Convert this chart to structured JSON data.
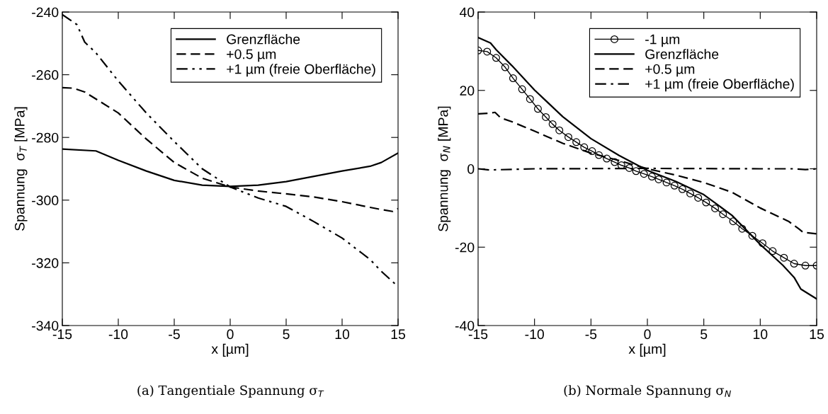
{
  "chart_data": [
    {
      "type": "line",
      "xlabel": "x [µm]",
      "ylabel": "Spannung  σ$_{T}$ [MPa]",
      "annotations": [
        "(a) Tangentiale Spannung σ$_{T}$"
      ],
      "xlim": [
        -15,
        15
      ],
      "xticks": [
        -15,
        -10,
        -5,
        0,
        5,
        10,
        15
      ],
      "ylim": [
        -340,
        -240
      ],
      "yticks": [
        -340,
        -320,
        -300,
        -280,
        -260,
        -240
      ],
      "grid": false,
      "legend": "top right",
      "series": [
        {
          "name": "Grenzfläche",
          "color": "#000000",
          "line_style": "solid",
          "x": [
            -15,
            -12,
            -10,
            -7.5,
            -5,
            -2.5,
            0,
            2.5,
            5,
            7.5,
            10,
            12.5,
            13.5,
            15
          ],
          "values": [
            -283.7,
            -284.3,
            -287.3,
            -290.7,
            -293.7,
            -295.2,
            -295.6,
            -295.2,
            -294.1,
            -292.4,
            -290.7,
            -289.2,
            -288,
            -285
          ]
        },
        {
          "name": "+0.5 µm",
          "color": "#000000",
          "line_style": "dashed",
          "x": [
            -15,
            -14,
            -13,
            -10,
            -7.5,
            -5,
            -2.5,
            0,
            2.5,
            5,
            7.5,
            10,
            12.5,
            13.5,
            14.5,
            15
          ],
          "values": [
            -264.1,
            -264.3,
            -265.5,
            -272.2,
            -280.5,
            -288,
            -293,
            -295.8,
            -297.1,
            -298,
            -299,
            -300.5,
            -302.3,
            -303,
            -303.6,
            -302.7
          ]
        },
        {
          "name": "+1 µm (freie Oberfläche)",
          "color": "#000000",
          "line_style": "dashdotdot",
          "x": [
            -15,
            -13.7,
            -13,
            -12,
            -10,
            -7.5,
            -5,
            -2.5,
            0,
            2.5,
            5,
            7.5,
            10,
            12.5,
            13.5,
            15
          ],
          "values": [
            -240.8,
            -244,
            -249.6,
            -253,
            -262,
            -272.2,
            -281.3,
            -290,
            -295.8,
            -299.3,
            -302,
            -306.9,
            -312.1,
            -318.9,
            -322.7,
            -327.6
          ]
        }
      ]
    },
    {
      "type": "line",
      "xlabel": "x [µm]",
      "ylabel": "Spannung  σ$_{N}$ [MPa]",
      "annotations": [
        "(b) Normale Spannung σ$_{N}$"
      ],
      "xlim": [
        -15,
        15
      ],
      "xticks": [
        -15,
        -10,
        -5,
        0,
        5,
        10,
        15
      ],
      "ylim": [
        -40,
        40
      ],
      "yticks": [
        -40,
        -20,
        0,
        20,
        40
      ],
      "grid": false,
      "legend": "top right",
      "series": [
        {
          "name": "-1 µm",
          "color": "#000000",
          "line_style": "solid",
          "marker": "circle",
          "x": [
            -15,
            -14.2,
            -13.4,
            -12.6,
            -11.9,
            -11.1,
            -10.4,
            -9.7,
            -9.0,
            -8.4,
            -7.8,
            -7.0,
            -6.3,
            -5.6,
            -4.9,
            -4.3,
            -3.6,
            -2.9,
            -2.3,
            -1.6,
            -1.0,
            -0.3,
            0.4,
            1.0,
            1.7,
            2.4,
            3.1,
            3.8,
            4.5,
            5.2,
            6.0,
            6.7,
            7.6,
            8.4,
            9.3,
            10.2,
            11.1,
            12.1,
            13.0,
            14.0,
            15
          ],
          "values": [
            30.2,
            29.9,
            28.3,
            25.9,
            23.1,
            20.3,
            17.8,
            15.3,
            13.2,
            11.4,
            9.8,
            8.1,
            6.8,
            5.5,
            4.5,
            3.5,
            2.6,
            1.7,
            0.9,
            0.2,
            -0.6,
            -1.3,
            -2.0,
            -2.7,
            -3.5,
            -4.3,
            -5.2,
            -6.3,
            -7.4,
            -8.6,
            -10.1,
            -11.6,
            -13.4,
            -15.3,
            -17.1,
            -19.0,
            -21.0,
            -22.7,
            -24.2,
            -24.7,
            -24.7
          ]
        },
        {
          "name": "Grenzfläche",
          "color": "#000000",
          "line_style": "solid",
          "x": [
            -15,
            -13.9,
            -13.4,
            -12,
            -10,
            -7.5,
            -5,
            -2.5,
            0,
            2.5,
            5,
            7.5,
            10,
            12,
            13,
            13.6,
            15
          ],
          "values": [
            33.5,
            32.1,
            30.4,
            26.3,
            20.1,
            13.3,
            7.7,
            3.4,
            -0.4,
            -3.2,
            -6.6,
            -11.9,
            -19.3,
            -24.6,
            -27.7,
            -30.7,
            -33.2
          ]
        },
        {
          "name": "+0.5 µm",
          "color": "#000000",
          "line_style": "dashed",
          "x": [
            -15,
            -14,
            -13.5,
            -13,
            -12,
            -10,
            -7.5,
            -5,
            -2.5,
            0,
            2.5,
            5,
            7.5,
            10,
            12.5,
            13.4,
            13.8,
            15
          ],
          "values": [
            14.0,
            14.2,
            14.4,
            13.0,
            12.0,
            9.6,
            6.5,
            4.0,
            2.1,
            0,
            -1.6,
            -3.5,
            -6.0,
            -10.0,
            -13.4,
            -15.3,
            -16.2,
            -16.6
          ]
        },
        {
          "name": "+1 µm (freie Oberfläche)",
          "color": "#000000",
          "line_style": "dashdot",
          "x": [
            -15,
            -14,
            -10,
            0,
            10,
            13,
            14,
            15
          ],
          "values": [
            0,
            -0.3,
            0,
            0.1,
            0,
            0,
            -0.2,
            0
          ]
        }
      ]
    }
  ]
}
